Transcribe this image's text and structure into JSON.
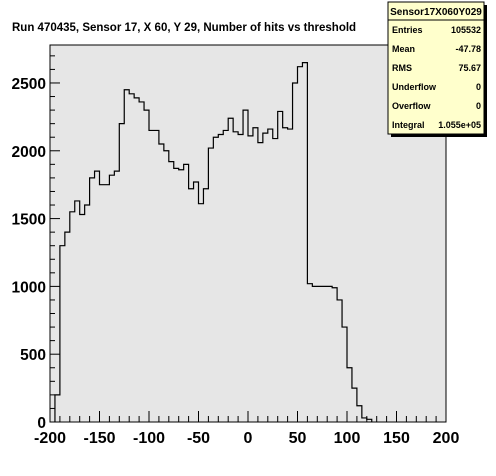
{
  "chart_data": {
    "type": "histogram",
    "title": "Run 470435, Sensor 17, X 60, Y 29, Number of hits vs threshold",
    "xlabel": "",
    "ylabel": "",
    "xlim": [
      -200,
      200
    ],
    "ylim": [
      0,
      2780
    ],
    "x_ticks": [
      -200,
      -150,
      -100,
      -50,
      0,
      50,
      100,
      150,
      200
    ],
    "y_ticks": [
      0,
      500,
      1000,
      1500,
      2000,
      2500
    ],
    "bin_width": 5,
    "bins_x_start": [
      -195,
      -190,
      -185,
      -180,
      -175,
      -170,
      -165,
      -160,
      -155,
      -150,
      -145,
      -140,
      -135,
      -130,
      -125,
      -120,
      -115,
      -110,
      -105,
      -100,
      -95,
      -90,
      -85,
      -80,
      -75,
      -70,
      -65,
      -60,
      -55,
      -50,
      -45,
      -40,
      -35,
      -30,
      -25,
      -20,
      -15,
      -10,
      -5,
      0,
      5,
      10,
      15,
      20,
      25,
      30,
      35,
      40,
      45,
      50,
      55,
      60,
      65,
      70,
      75,
      80,
      85,
      90,
      95,
      100,
      105,
      110,
      115,
      120
    ],
    "values": [
      200,
      1300,
      1400,
      1550,
      1630,
      1530,
      1600,
      1800,
      1850,
      1750,
      1750,
      1820,
      1850,
      2200,
      2450,
      2420,
      2390,
      2360,
      2300,
      2150,
      2150,
      2050,
      2000,
      1920,
      1870,
      1860,
      1900,
      1720,
      1770,
      1610,
      1720,
      2020,
      2100,
      2120,
      2150,
      2240,
      2140,
      2120,
      2300,
      2110,
      2170,
      2060,
      2130,
      2160,
      2090,
      2290,
      2170,
      2160,
      2500,
      2620,
      2650,
      1020,
      1000,
      1000,
      1000,
      1000,
      990,
      900,
      700,
      400,
      250,
      120,
      30,
      20
    ],
    "frame_color": "#e6e6e6",
    "line_color": "#000000",
    "stats": {
      "title": "Sensor17X060Y029",
      "rows": [
        {
          "label": "Entries",
          "value": "105532"
        },
        {
          "label": "Mean",
          "value": "-47.78"
        },
        {
          "label": "RMS",
          "value": "75.67"
        },
        {
          "label": "Underflow",
          "value": "0"
        },
        {
          "label": "Overflow",
          "value": "0"
        },
        {
          "label": "Integral",
          "value": "1.055e+05"
        }
      ],
      "background_color": "#ffffcc"
    }
  }
}
